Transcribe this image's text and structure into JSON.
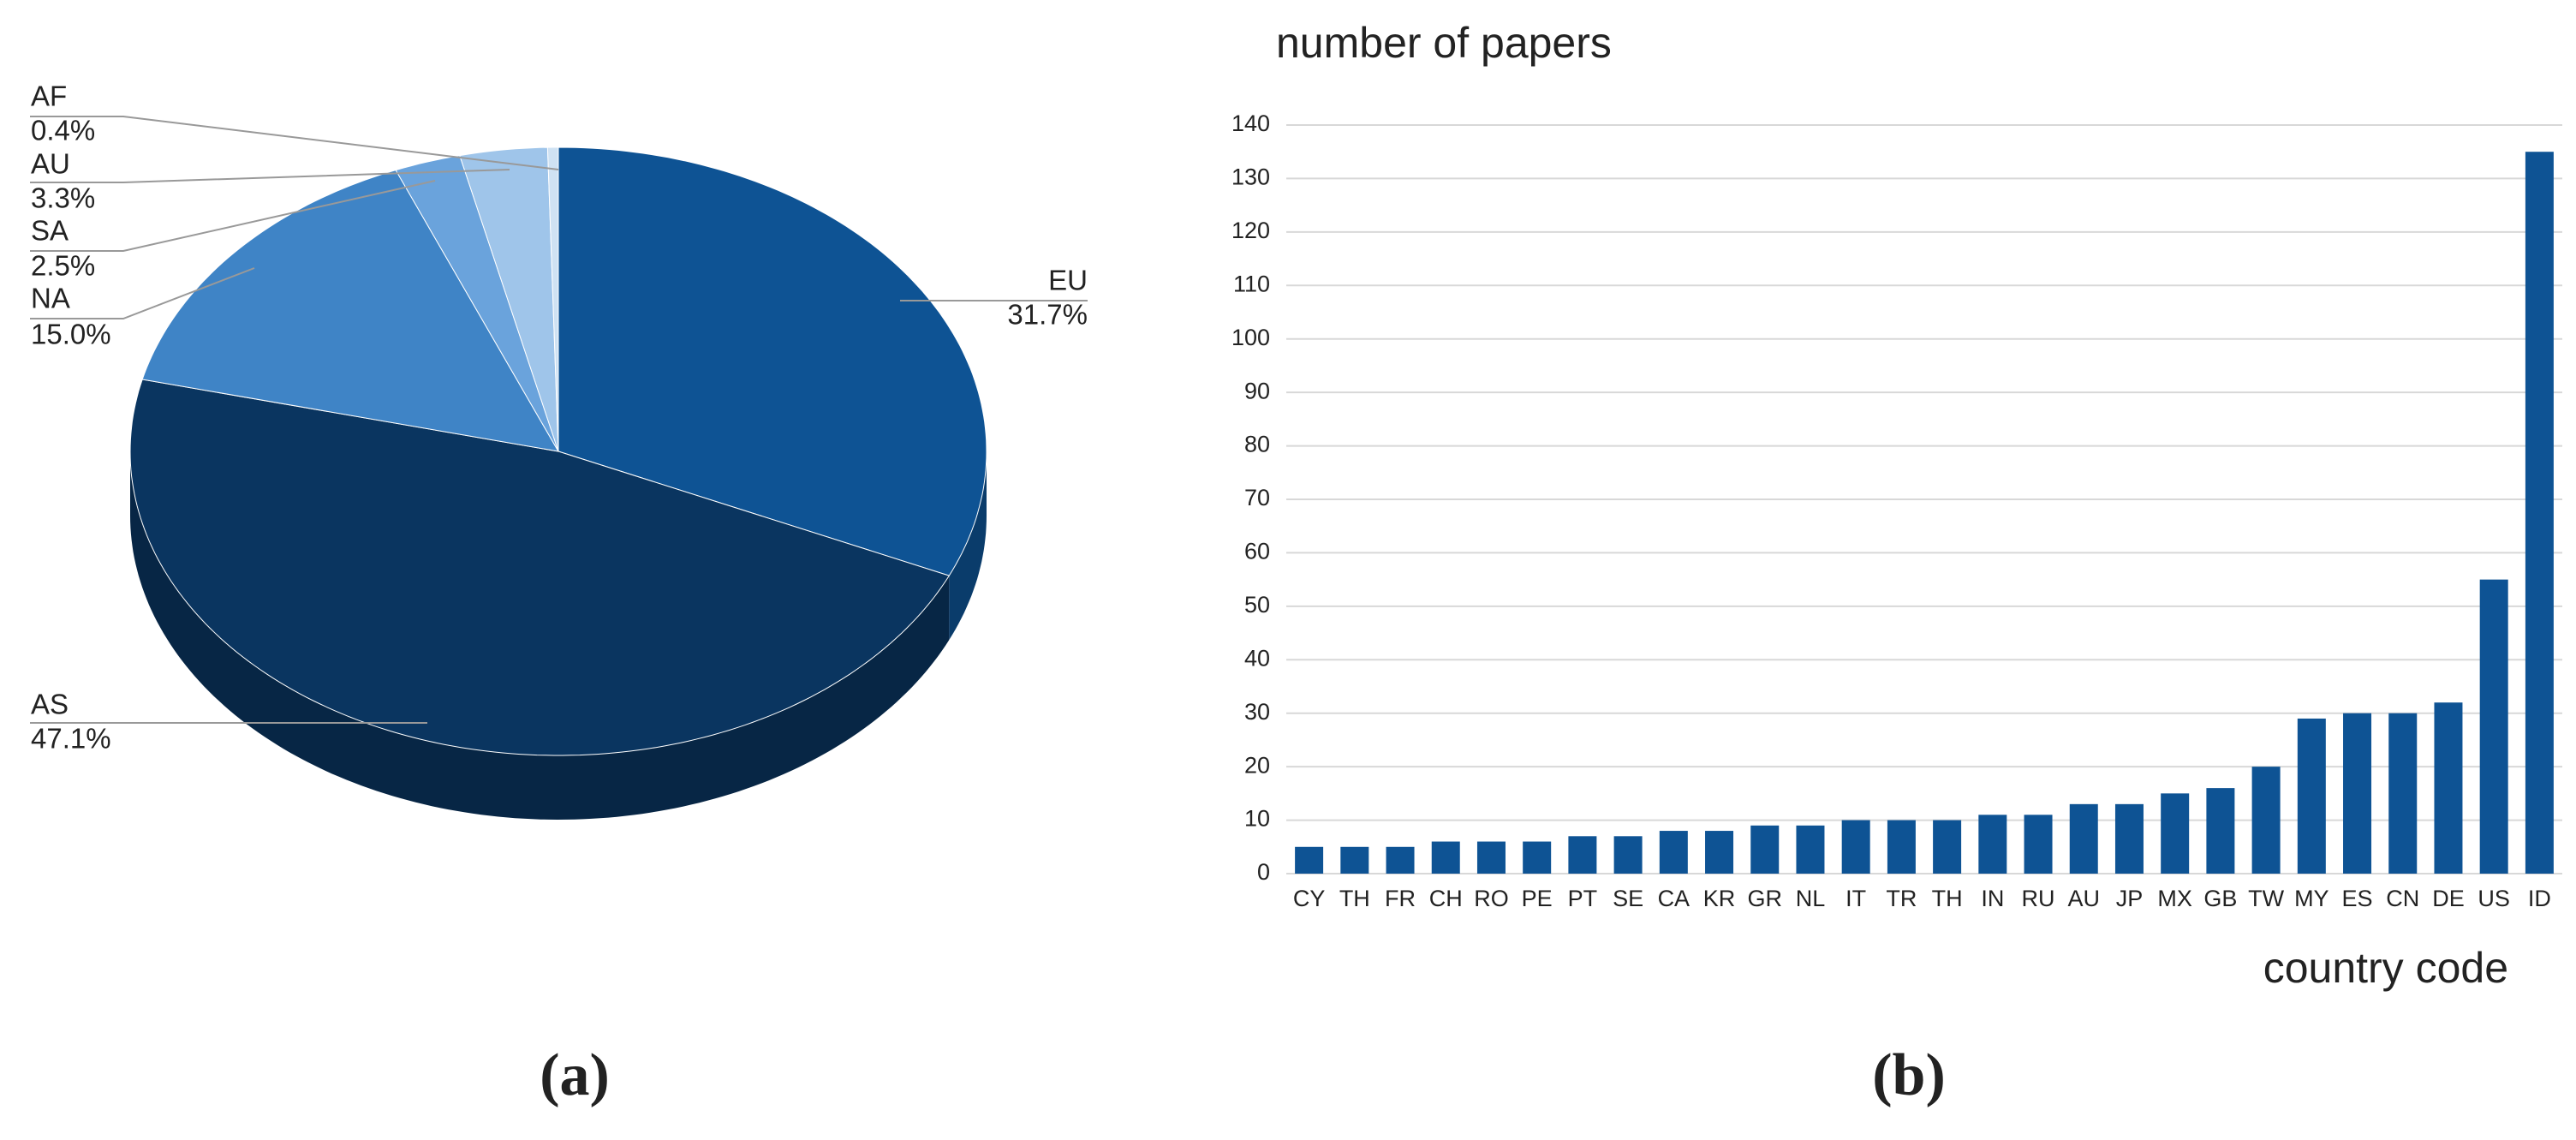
{
  "chart_data": [
    {
      "type": "pie",
      "caption": "(a)",
      "categories": [
        "EU",
        "AS",
        "NA",
        "SA",
        "AU",
        "AF"
      ],
      "values": [
        31.7,
        47.1,
        15.0,
        2.5,
        3.3,
        0.4
      ],
      "value_labels": [
        "31.7%",
        "47.1%",
        "15.0%",
        "2.5%",
        "3.3%",
        "0.4%"
      ],
      "colors": [
        "#0e5394",
        "#0a3560",
        "#3f84c6",
        "#6aa3dc",
        "#9fc5ea",
        "#cfe2f3"
      ]
    },
    {
      "type": "bar",
      "caption": "(b)",
      "y_label": "number of papers",
      "x_label": "country code",
      "categories": [
        "CY",
        "TH",
        "FR",
        "CH",
        "RO",
        "PE",
        "PT",
        "SE",
        "CA",
        "KR",
        "GR",
        "NL",
        "IT",
        "TR",
        "TH",
        "IN",
        "RU",
        "AU",
        "JP",
        "MX",
        "GB",
        "TW",
        "MY",
        "ES",
        "CN",
        "DE",
        "US",
        "ID"
      ],
      "values": [
        5,
        5,
        5,
        6,
        6,
        6,
        7,
        7,
        8,
        8,
        9,
        9,
        10,
        10,
        10,
        11,
        11,
        13,
        13,
        15,
        16,
        20,
        29,
        30,
        30,
        32,
        55,
        135
      ],
      "color": "#0e5394",
      "ylim": [
        0,
        140
      ],
      "yticks": [
        0,
        10,
        20,
        30,
        40,
        50,
        60,
        70,
        80,
        90,
        100,
        110,
        120,
        130,
        140
      ],
      "grid": true
    }
  ]
}
